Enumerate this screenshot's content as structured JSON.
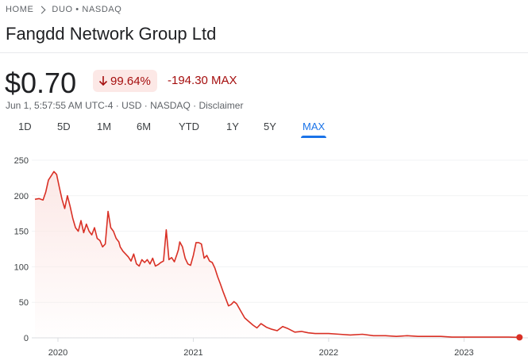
{
  "breadcrumb": {
    "home": "HOME",
    "ticker": "DUO • NASDAQ"
  },
  "company": {
    "name": "Fangdd Network Group Ltd"
  },
  "quote": {
    "price": "$0.70",
    "change_percent": "99.64%",
    "change_abs": "-194.30 MAX",
    "timestamp": "Jun 1, 5:57:55 AM UTC-4",
    "currency": "USD",
    "exchange": "NASDAQ",
    "disclaimer": "Disclaimer",
    "separator": " · ",
    "direction_icon": "arrow-down-icon",
    "negative_color": "#a50e0e",
    "negative_bg": "#fce8e6"
  },
  "tabs": [
    {
      "label": "1D",
      "active": false
    },
    {
      "label": "5D",
      "active": false
    },
    {
      "label": "1M",
      "active": false
    },
    {
      "label": "6M",
      "active": false
    },
    {
      "label": "YTD",
      "active": false
    },
    {
      "label": "1Y",
      "active": false
    },
    {
      "label": "5Y",
      "active": false
    },
    {
      "label": "MAX",
      "active": true
    }
  ],
  "accent_color": "#1a73e8",
  "chart_data": {
    "type": "area",
    "title": "",
    "xlabel": "",
    "ylabel": "",
    "ylim": [
      0,
      250
    ],
    "xlim": [
      2019.83,
      2023.42
    ],
    "yticks": [
      0,
      50,
      100,
      150,
      200,
      250
    ],
    "xticks": [
      {
        "label": "2020",
        "value": 2020.0
      },
      {
        "label": "2021",
        "value": 2021.0
      },
      {
        "label": "2022",
        "value": 2022.0
      },
      {
        "label": "2023",
        "value": 2023.0
      }
    ],
    "grid": true,
    "line_color": "#d93025",
    "series": [
      {
        "x": [
          2019.83,
          2019.86,
          2019.89,
          2019.91,
          2019.93,
          2019.95,
          2019.97,
          2019.99,
          2020.01,
          2020.03,
          2020.05,
          2020.07,
          2020.09,
          2020.11,
          2020.13,
          2020.15,
          2020.17,
          2020.19,
          2020.21,
          2020.23,
          2020.25,
          2020.27,
          2020.29,
          2020.31,
          2020.33,
          2020.35,
          2020.37,
          2020.39,
          2020.41,
          2020.43,
          2020.45,
          2020.46,
          2020.48,
          2020.5,
          2020.52,
          2020.54,
          2020.56,
          2020.58,
          2020.6,
          2020.62,
          2020.64,
          2020.66,
          2020.68,
          2020.7,
          2020.72,
          2020.74,
          2020.76,
          2020.78,
          2020.8,
          2020.82,
          2020.84,
          2020.86,
          2020.88,
          2020.89,
          2020.9,
          2020.92,
          2020.94,
          2020.96,
          2020.98,
          2021.0,
          2021.02,
          2021.04,
          2021.06,
          2021.08,
          2021.1,
          2021.12,
          2021.14,
          2021.16,
          2021.18,
          2021.2,
          2021.22,
          2021.24,
          2021.26,
          2021.28,
          2021.3,
          2021.32,
          2021.35,
          2021.38,
          2021.41,
          2021.44,
          2021.47,
          2021.5,
          2021.54,
          2021.58,
          2021.62,
          2021.66,
          2021.7,
          2021.75,
          2021.8,
          2021.85,
          2021.9,
          2021.95,
          2022.0,
          2022.08,
          2022.16,
          2022.25,
          2022.33,
          2022.42,
          2022.5,
          2022.58,
          2022.66,
          2022.75,
          2022.83,
          2022.91,
          2023.0,
          2023.08,
          2023.16,
          2023.25,
          2023.33,
          2023.41
        ],
        "y": [
          195,
          196,
          194,
          205,
          222,
          228,
          234,
          230,
          212,
          195,
          182,
          200,
          185,
          168,
          155,
          150,
          165,
          148,
          160,
          150,
          145,
          155,
          140,
          137,
          128,
          132,
          178,
          155,
          150,
          140,
          135,
          128,
          122,
          118,
          114,
          108,
          118,
          104,
          101,
          110,
          106,
          110,
          104,
          112,
          101,
          103,
          106,
          108,
          152,
          110,
          113,
          107,
          118,
          124,
          135,
          128,
          112,
          104,
          102,
          116,
          134,
          134,
          132,
          112,
          116,
          108,
          106,
          98,
          86,
          76,
          65,
          55,
          45,
          47,
          51,
          48,
          38,
          28,
          23,
          18,
          14,
          20,
          15,
          12,
          10,
          16,
          13,
          8,
          9,
          7,
          6,
          6,
          6,
          5,
          4,
          5,
          3,
          3,
          2,
          3,
          2,
          2,
          2,
          1,
          1,
          1,
          1,
          1,
          1,
          0.7
        ]
      }
    ]
  }
}
